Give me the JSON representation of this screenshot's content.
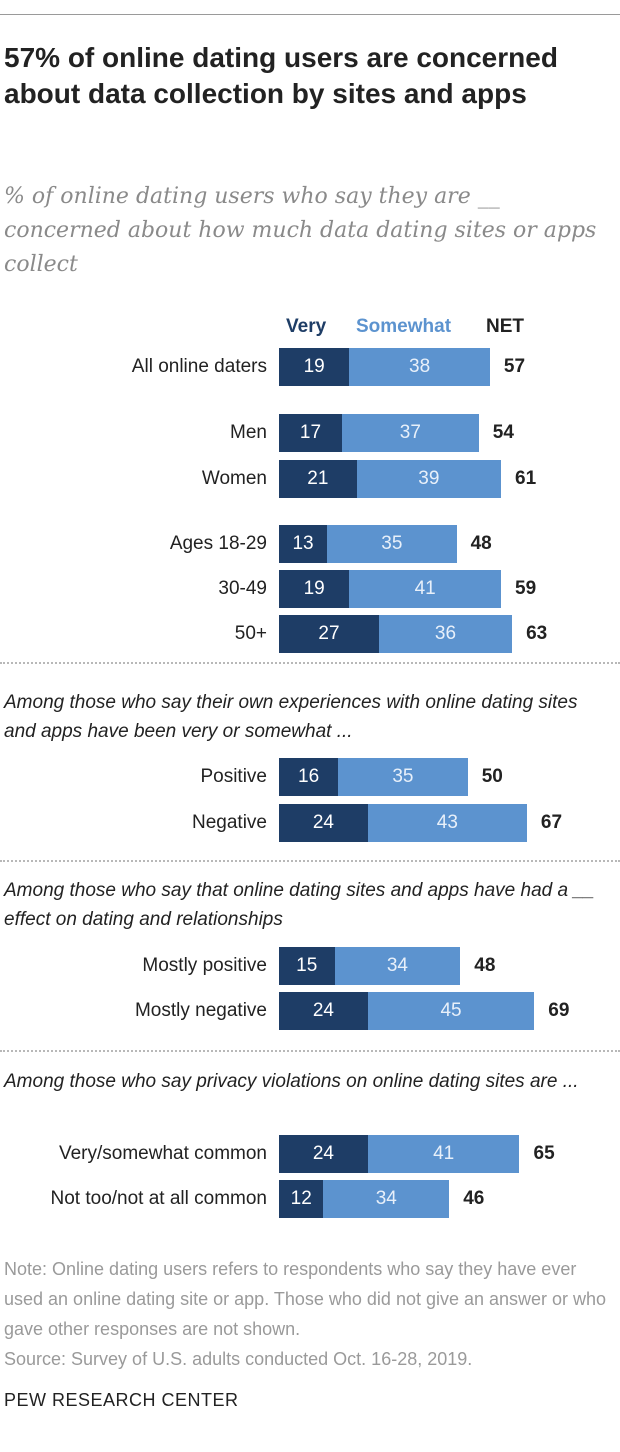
{
  "title": "57% of online dating users are concerned about data collection by sites and apps",
  "subtitle": "% of online dating users who say they are __ concerned about how much data dating sites or apps collect",
  "legend": {
    "very": "Very",
    "somewhat": "Somewhat",
    "net": "NET"
  },
  "colors": {
    "very": "#1e3d66",
    "somewhat": "#5c93cf"
  },
  "sections": {
    "experiences": "Among those who say their own experiences with online dating sites and apps have been very or somewhat ...",
    "effect": "Among those who say that online dating sites and apps have had a __ effect on dating and relationships",
    "privacy": "Among those who say privacy violations on online dating sites are ..."
  },
  "note": "Note: Online dating users refers to respondents who say they have ever used an online dating site or app. Those who did not give an answer or who gave other responses are not shown.",
  "source": "Source: Survey of U.S. adults conducted Oct. 16-28, 2019.",
  "footer": "PEW RESEARCH CENTER",
  "chart_data": {
    "type": "bar",
    "orientation": "horizontal",
    "stacked": true,
    "title": "57% of online dating users are concerned about data collection by sites and apps",
    "legend_placement": "top",
    "categories": [
      "All online daters",
      "Men",
      "Women",
      "Ages 18-29",
      "30-49",
      "50+",
      "Positive",
      "Negative",
      "Mostly positive",
      "Mostly negative",
      "Very/somewhat common",
      "Not too/not at all common"
    ],
    "series": [
      {
        "name": "Very",
        "values": [
          19,
          17,
          21,
          13,
          19,
          27,
          16,
          24,
          15,
          24,
          24,
          12
        ]
      },
      {
        "name": "Somewhat",
        "values": [
          38,
          37,
          39,
          35,
          41,
          36,
          35,
          43,
          34,
          45,
          41,
          34
        ]
      },
      {
        "name": "NET",
        "values": [
          57,
          54,
          61,
          48,
          59,
          63,
          50,
          67,
          48,
          69,
          65,
          46
        ]
      }
    ]
  }
}
